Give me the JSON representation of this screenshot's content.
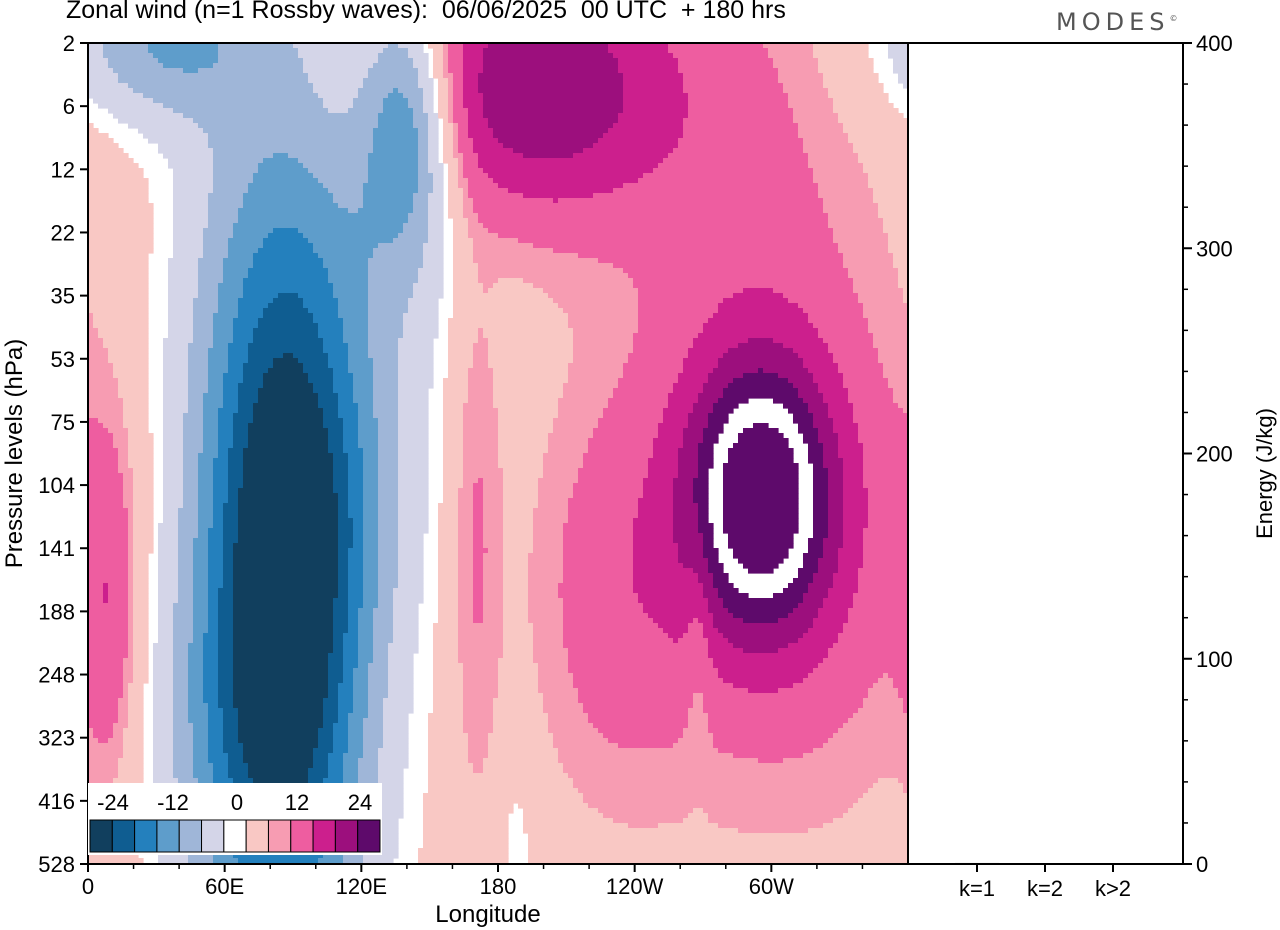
{
  "title": "Zonal wind (n=1 Rossby waves):  06/06/2025  00 UTC  + 180 hrs",
  "brand": "MODES",
  "brand_mark": "©",
  "colors": {
    "neg": [
      "#113f5e",
      "#0f5d91",
      "#2480bd",
      "#5e9dcb",
      "#9fb6d8",
      "#d4d5e8"
    ],
    "pos": [
      "#f9c8c4",
      "#f79cb2",
      "#ee5da0",
      "#cc1f8d",
      "#9c0f7d",
      "#5e0a6b"
    ],
    "zero": "#ffffff"
  },
  "chart_data": [
    {
      "type": "heatmap",
      "title": "Zonal wind (n=1 Rossby waves):  06/06/2025  00 UTC  + 180 hrs",
      "xlabel": "Longitude",
      "ylabel": "Pressure levels (hPa)",
      "x_ticks": [
        "0",
        "60E",
        "120E",
        "180",
        "120W",
        "60W"
      ],
      "y_ticks": [
        "2",
        "6",
        "12",
        "22",
        "35",
        "53",
        "75",
        "104",
        "141",
        "188",
        "248",
        "323",
        "416",
        "528"
      ],
      "colorbar": {
        "labels": [
          "-24",
          "-12",
          "0",
          "12",
          "24"
        ],
        "levels": [
          -30,
          -25,
          -20,
          -15,
          -10,
          -5,
          -2.5,
          2.5,
          5,
          10,
          15,
          20,
          25,
          30
        ]
      },
      "features": [
        {
          "lon": 85,
          "level": 7.8,
          "rx": 30,
          "ry": 5.0,
          "amp": -30
        },
        {
          "lon": 88,
          "level": 8.7,
          "rx": 18,
          "ry": 3.0,
          "amp": -8
        },
        {
          "lon": 70,
          "level": 11.0,
          "rx": 30,
          "ry": 2.0,
          "amp": -7
        },
        {
          "lon": 110,
          "level": 7.4,
          "rx": 28,
          "ry": 1.5,
          "amp": -4
        },
        {
          "lon": 140,
          "level": 1.2,
          "rx": 14,
          "ry": 1.4,
          "amp": -18
        },
        {
          "lon": 140,
          "level": 2.4,
          "rx": 24,
          "ry": 2.2,
          "amp": -6
        },
        {
          "lon": 30,
          "level": 0.0,
          "rx": 30,
          "ry": 0.9,
          "amp": -14
        },
        {
          "lon": 195,
          "level": 0.7,
          "rx": 45,
          "ry": 1.5,
          "amp": 20
        },
        {
          "lon": 170,
          "level": 7.6,
          "rx": 8,
          "ry": 3.2,
          "amp": 6
        },
        {
          "lon": 230,
          "level": 8.8,
          "rx": 24,
          "ry": 2.2,
          "amp": 6
        },
        {
          "lon": 295,
          "level": 7.2,
          "rx": 22,
          "ry": 1.5,
          "amp": 28
        },
        {
          "lon": 305,
          "level": 8.0,
          "rx": 48,
          "ry": 2.8,
          "amp": 9
        },
        {
          "lon": 290,
          "level": 2.5,
          "rx": 38,
          "ry": 3.0,
          "amp": 5
        },
        {
          "lon": 10,
          "level": 9.0,
          "rx": 9,
          "ry": 2.0,
          "amp": 8
        },
        {
          "lon": 188,
          "level": 12.8,
          "rx": 6,
          "ry": 1.2,
          "amp": -4
        },
        {
          "lon": 268,
          "level": 9.3,
          "rx": 4,
          "ry": 1.3,
          "amp": -4
        }
      ]
    },
    {
      "type": "bar",
      "categories": [
        "k=1",
        "k=2",
        "k>2"
      ],
      "values": [
        0.5,
        0.3,
        0.3
      ],
      "ylabel": "Energy (J/kg)",
      "ylim": [
        0,
        400
      ],
      "y_ticks": [
        0,
        100,
        200,
        300,
        400
      ]
    }
  ]
}
